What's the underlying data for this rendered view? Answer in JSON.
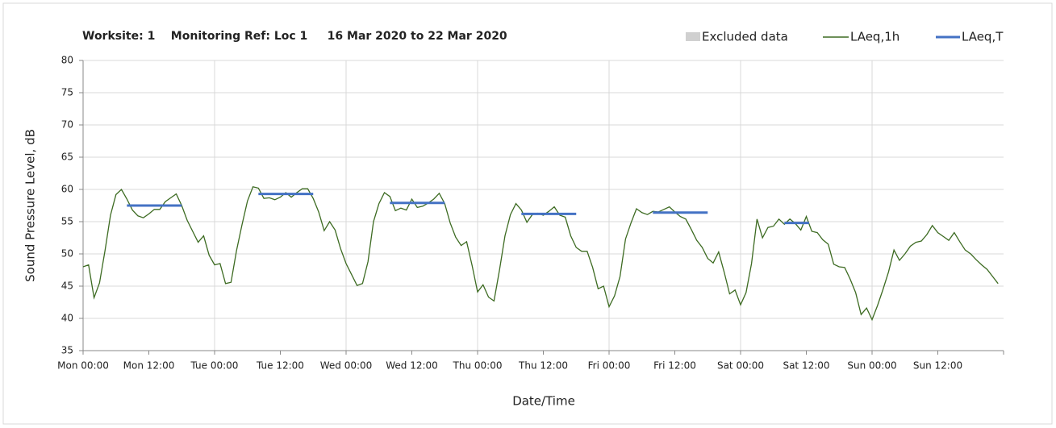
{
  "chart_data": {
    "type": "line",
    "title": "Worksite: 1    Monitoring Ref: Loc 1     16 Mar 2020 to 22 Mar 2020",
    "xlabel": "Date/Time",
    "ylabel": "Sound Pressure Level, dB",
    "xlim": [
      0,
      168
    ],
    "ylim": [
      35,
      80
    ],
    "yticks": [
      35,
      40,
      45,
      50,
      55,
      60,
      65,
      70,
      75,
      80
    ],
    "xticks": [
      {
        "value": 0,
        "label": "Mon 00:00"
      },
      {
        "value": 12,
        "label": "Mon 12:00"
      },
      {
        "value": 24,
        "label": "Tue 00:00"
      },
      {
        "value": 36,
        "label": "Tue 12:00"
      },
      {
        "value": 48,
        "label": "Wed 00:00"
      },
      {
        "value": 60,
        "label": "Wed 12:00"
      },
      {
        "value": 72,
        "label": "Thu 00:00"
      },
      {
        "value": 84,
        "label": "Thu 12:00"
      },
      {
        "value": 96,
        "label": "Fri 00:00"
      },
      {
        "value": 108,
        "label": "Fri 12:00"
      },
      {
        "value": 120,
        "label": "Sat 00:00"
      },
      {
        "value": 132,
        "label": "Sat 12:00"
      },
      {
        "value": 144,
        "label": "Sun 00:00"
      },
      {
        "value": 156,
        "label": "Sun 12:00"
      }
    ],
    "xgrid": [
      24,
      48,
      72,
      96,
      120,
      144
    ],
    "grid": true,
    "excluded": {
      "name": "Excluded data",
      "color": "#d0d0d0"
    },
    "series": [
      {
        "name": "LAeq,1h",
        "color": "#3d6b22",
        "x": [
          0,
          1,
          2,
          3,
          4,
          5,
          6,
          7,
          8,
          9,
          10,
          11,
          12,
          13,
          14,
          15,
          16,
          17,
          18,
          19,
          20,
          21,
          22,
          23,
          24,
          25,
          26,
          27,
          28,
          29,
          30,
          31,
          32,
          33,
          34,
          35,
          36,
          37,
          38,
          39,
          40,
          41,
          42,
          43,
          44,
          45,
          46,
          47,
          48,
          49,
          50,
          51,
          52,
          53,
          54,
          55,
          56,
          57,
          58,
          59,
          60,
          61,
          62,
          63,
          64,
          65,
          66,
          67,
          68,
          69,
          70,
          71,
          72,
          73,
          74,
          75,
          76,
          77,
          78,
          79,
          80,
          81,
          82,
          83,
          84,
          85,
          86,
          87,
          88,
          89,
          90,
          91,
          92,
          93,
          94,
          95,
          96,
          97,
          98,
          99,
          100,
          101,
          102,
          103,
          104,
          105,
          106,
          107,
          108,
          109,
          110,
          111,
          112,
          113,
          114,
          115,
          116,
          117,
          118,
          119,
          120,
          121,
          122,
          123,
          124,
          125,
          126,
          127,
          128,
          129,
          130,
          131,
          132,
          133,
          134,
          135,
          136,
          137,
          138,
          139,
          140,
          141,
          142,
          143,
          144,
          145,
          146,
          147,
          148,
          149,
          150,
          151,
          152,
          153,
          154,
          155,
          156,
          157,
          158,
          159,
          160,
          161,
          162,
          163,
          164,
          165,
          166,
          167
        ],
        "values": [
          48,
          48.3,
          43.2,
          45.5,
          50.5,
          56,
          59.2,
          60,
          58.5,
          56.8,
          55.9,
          55.6,
          56.2,
          56.9,
          56.9,
          58.1,
          58.7,
          59.3,
          57.5,
          55.2,
          53.5,
          51.8,
          52.8,
          49.8,
          48.3,
          48.5,
          45.4,
          45.6,
          50.5,
          54.5,
          58.2,
          60.4,
          60.2,
          58.6,
          58.7,
          58.4,
          58.8,
          59.5,
          58.8,
          59.5,
          60.1,
          60.1,
          58.6,
          56.5,
          53.6,
          55.0,
          53.7,
          50.8,
          48.5,
          46.8,
          45.1,
          45.4,
          48.8,
          55,
          57.8,
          59.5,
          58.9,
          56.7,
          57.1,
          56.8,
          58.5,
          57.2,
          57.4,
          57.9,
          58.5,
          59.4,
          57.8,
          54.8,
          52.6,
          51.3,
          51.9,
          48.2,
          44.1,
          45.2,
          43.3,
          42.7,
          47.5,
          52.8,
          56.1,
          57.8,
          56.8,
          54.9,
          56.1,
          56.3,
          56.0,
          56.6,
          57.3,
          56.0,
          55.7,
          52.8,
          51.0,
          50.4,
          50.4,
          47.9,
          44.6,
          45.0,
          41.8,
          43.5,
          46.5,
          52.3,
          54.8,
          57.0,
          56.4,
          56.1,
          56.6,
          56.5,
          56.9,
          57.3,
          56.5,
          55.8,
          55.4,
          53.8,
          52.1,
          51,
          49.3,
          48.6,
          50.3,
          47.2,
          43.8,
          44.4,
          42.1,
          44.0,
          48.5,
          55.4,
          52.5,
          54.1,
          54.3,
          55.4,
          54.6,
          55.4,
          54.7,
          53.7,
          55.8,
          53.5,
          53.3,
          52.2,
          51.5,
          48.4,
          48.0,
          47.9,
          46.1,
          44.0,
          40.6,
          41.6,
          39.8,
          42.0,
          44.5,
          47.2,
          50.6,
          49.0,
          50.0,
          51.2,
          51.8,
          52.0,
          53.0,
          54.4,
          53.3,
          52.7,
          52.1,
          53.3,
          51.9,
          50.6,
          50.0,
          49.1,
          48.3,
          47.6,
          46.5,
          45.4
        ]
      },
      {
        "name": "LAeq,T",
        "color": "#4472c4",
        "segments": [
          {
            "x": [
              8,
              18
            ],
            "value": 57.5
          },
          {
            "x": [
              32,
              42
            ],
            "value": 59.3
          },
          {
            "x": [
              56,
              66
            ],
            "value": 57.9
          },
          {
            "x": [
              80,
              90
            ],
            "value": 56.2
          },
          {
            "x": [
              104,
              114
            ],
            "value": 56.4
          },
          {
            "x": [
              128,
              132.5
            ],
            "value": 54.8
          }
        ]
      }
    ]
  }
}
